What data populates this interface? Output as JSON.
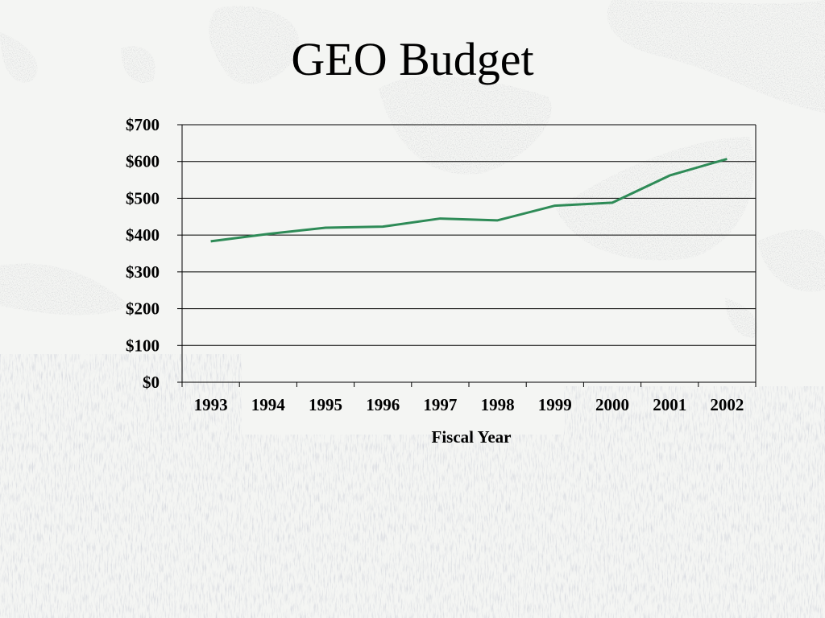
{
  "slide": {
    "title": "GEO Budget"
  },
  "colors": {
    "line": "#2e8b57",
    "grid": "#000000",
    "text": "#000000",
    "landmass": "#a8a8a8",
    "background": "#f4f5f3"
  },
  "chart_data": {
    "type": "line",
    "title": "GEO Budget",
    "xlabel": "Fiscal Year",
    "ylabel": "",
    "categories": [
      "1993",
      "1994",
      "1995",
      "1996",
      "1997",
      "1998",
      "1999",
      "2000",
      "2001",
      "2002"
    ],
    "series": [
      {
        "values": [
          383,
          403,
          420,
          423,
          445,
          440,
          480,
          488,
          562,
          607
        ]
      }
    ],
    "ylim": [
      0,
      700
    ],
    "yticks": [
      0,
      100,
      200,
      300,
      400,
      500,
      600,
      700
    ],
    "ytick_labels": [
      "$0",
      "$100",
      "$200",
      "$300",
      "$400",
      "$500",
      "$600",
      "$700"
    ],
    "grid": true,
    "legend": "none"
  }
}
